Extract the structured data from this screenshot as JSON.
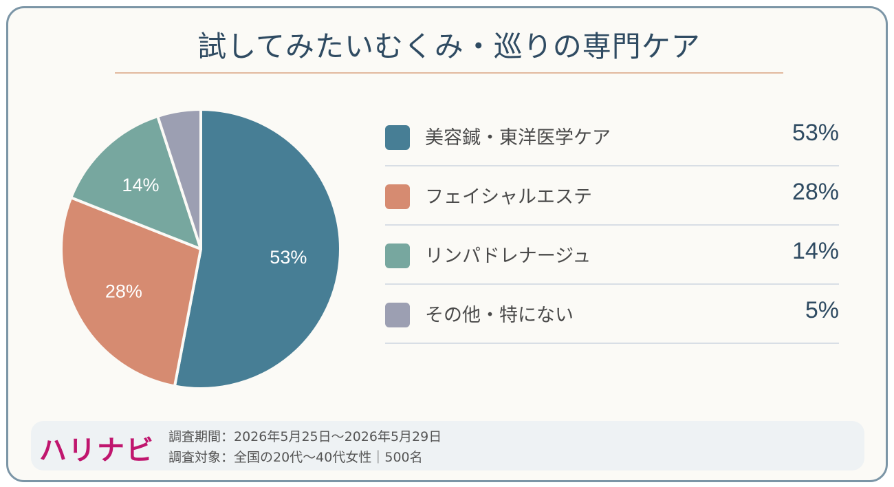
{
  "title": "試してみたいむくみ・巡りの専門ケア",
  "brand": "ハリナビ",
  "footer": {
    "period": "調査期間：2026年5月25日〜2026年5月29日",
    "target": "調査対象：全国の20代〜40代女性｜500名"
  },
  "chart_data": {
    "type": "pie",
    "title": "試してみたいむくみ・巡りの専門ケア",
    "labels": [
      "美容鍼・東洋医学ケア",
      "フェイシャルエステ",
      "リンパドレナージュ",
      "その他・特にない"
    ],
    "values": [
      53,
      28,
      14,
      5
    ],
    "value_labels": [
      "53%",
      "28%",
      "14%",
      "5%"
    ],
    "slice_labels": [
      "53%",
      "28%",
      "14%",
      ""
    ],
    "colors": [
      "#477e95",
      "#d68b71",
      "#77a79f",
      "#9c9fb2"
    ],
    "start_angle": "12 o'clock",
    "direction": "clockwise",
    "legend_position": "right"
  }
}
